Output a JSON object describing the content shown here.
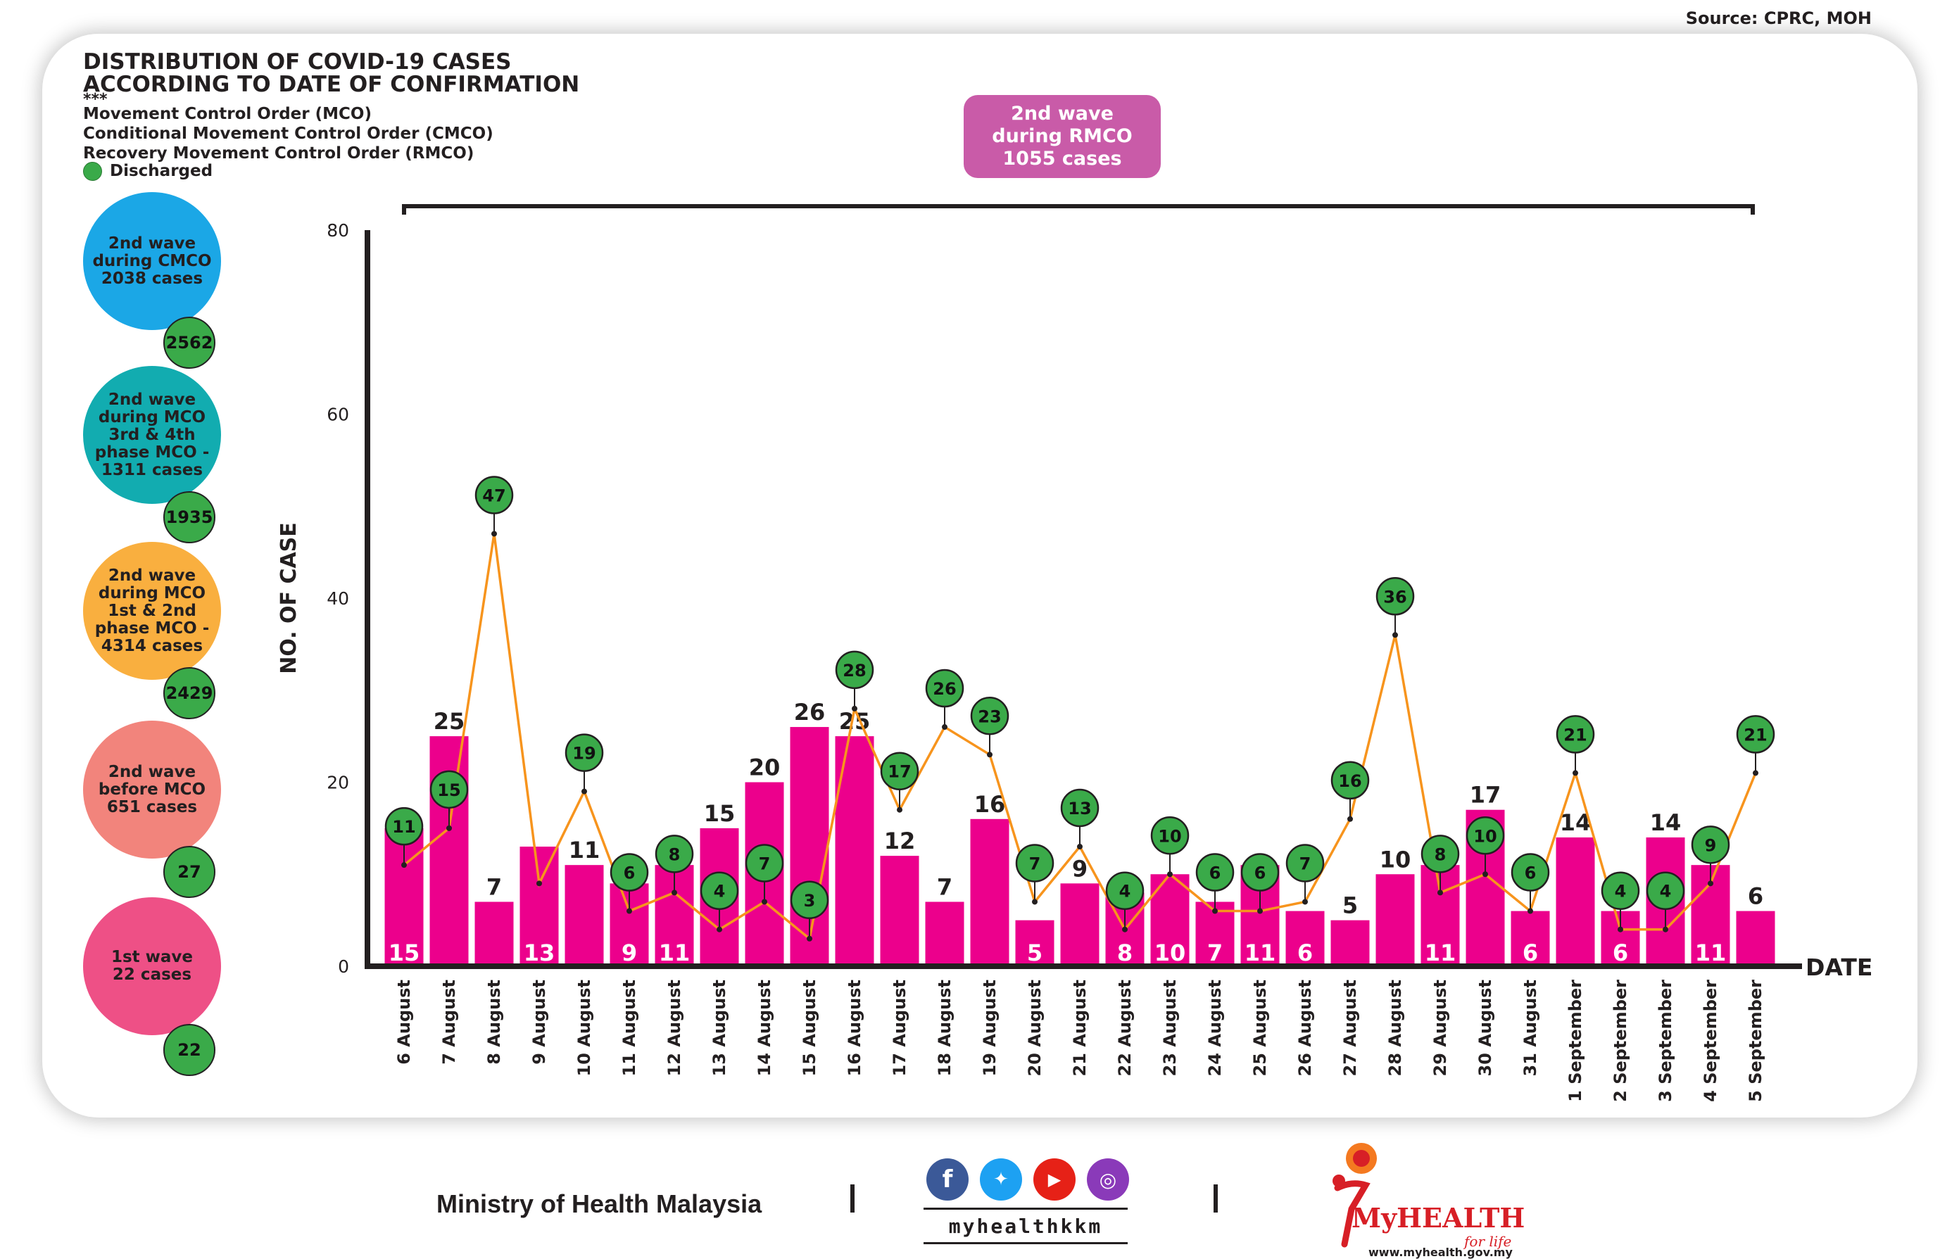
{
  "source": "Source: CPRC, MOH",
  "title_line1": "DISTRIBUTION OF COVID-19 CASES",
  "title_line2": "ACCORDING TO DATE OF CONFIRMATION",
  "stars": "***",
  "legend": {
    "mco": "Movement Control Order (MCO)",
    "cmco": "Conditional Movement Control Order (CMCO)",
    "rmco": "Recovery Movement Control Order (RMCO)",
    "discharged": "Discharged"
  },
  "waves": [
    {
      "label": "2nd wave\nduring CMCO\n2038 cases",
      "discharged": "2562",
      "color": "#1ba7e6"
    },
    {
      "label": "2nd wave\nduring MCO\n3rd & 4th\nphase MCO -\n1311 cases",
      "discharged": "1935",
      "color": "#12acb0"
    },
    {
      "label": "2nd wave\nduring MCO\n1st & 2nd\nphase MCO -\n4314 cases",
      "discharged": "2429",
      "color": "#f9af3f"
    },
    {
      "label": "2nd wave\nbefore MCO\n651 cases",
      "discharged": "27",
      "color": "#f2847c"
    },
    {
      "label": "1st wave\n22 cases",
      "discharged": "22",
      "color": "#ee5086"
    }
  ],
  "rmco_box": "2nd wave\nduring RMCO\n1055 cases",
  "footer": {
    "ministry": "Ministry of Health Malaysia",
    "handle": "myhealthkkm",
    "logo_text": "MyHEALTH",
    "logo_sub": "for life",
    "url": "www.myhealth.gov.my",
    "social_icons": [
      "facebook-icon",
      "twitter-icon",
      "youtube-icon",
      "instagram-icon"
    ]
  },
  "chart_data": {
    "type": "bar",
    "title": "",
    "xlabel": "DATE",
    "ylabel": "NO. OF CASE",
    "ylim": [
      0,
      80
    ],
    "yticks": [
      0,
      20,
      40,
      60,
      80
    ],
    "bar_color": "#ec008c",
    "line_color": "#f7941d",
    "discharged_color": "#3aaa49",
    "categories": [
      "6 August",
      "7 August",
      "8 August",
      "9 August",
      "10 August",
      "11 August",
      "12 August",
      "13 August",
      "14 August",
      "15 August",
      "16 August",
      "17 August",
      "18 August",
      "19 August",
      "20 August",
      "21 August",
      "22 August",
      "23 August",
      "24 August",
      "25 August",
      "26 August",
      "27 August",
      "28 August",
      "29 August",
      "30 August",
      "31 August",
      "1 September",
      "2 September",
      "3 September",
      "4 September",
      "5 September"
    ],
    "series": [
      {
        "name": "",
        "type": "bar",
        "values": [
          15,
          25,
          7,
          13,
          11,
          9,
          11,
          15,
          20,
          26,
          25,
          12,
          7,
          16,
          5,
          9,
          8,
          10,
          7,
          11,
          6,
          5,
          10,
          11,
          17,
          6,
          14,
          6,
          14,
          11,
          6
        ]
      },
      {
        "name": "Discharged",
        "type": "line",
        "values": [
          11,
          15,
          47,
          9,
          19,
          6,
          8,
          4,
          7,
          3,
          28,
          17,
          26,
          23,
          7,
          13,
          4,
          10,
          6,
          6,
          7,
          16,
          36,
          8,
          10,
          6,
          21,
          4,
          4,
          9,
          21
        ]
      }
    ],
    "label_inside": [
      15,
      null,
      null,
      13,
      null,
      9,
      11,
      null,
      null,
      null,
      null,
      null,
      null,
      null,
      5,
      null,
      8,
      10,
      7,
      11,
      6,
      null,
      null,
      11,
      null,
      6,
      null,
      6,
      null,
      11,
      null
    ],
    "label_top": [
      null,
      25,
      7,
      null,
      11,
      null,
      null,
      15,
      20,
      26,
      25,
      12,
      7,
      16,
      null,
      9,
      null,
      null,
      null,
      null,
      null,
      5,
      10,
      null,
      17,
      null,
      14,
      null,
      14,
      null,
      6
    ],
    "discharged_bubbles": [
      11,
      15,
      47,
      null,
      19,
      6,
      8,
      4,
      7,
      3,
      28,
      17,
      26,
      23,
      7,
      13,
      4,
      10,
      6,
      6,
      7,
      16,
      36,
      8,
      10,
      6,
      21,
      4,
      4,
      9,
      21
    ]
  }
}
